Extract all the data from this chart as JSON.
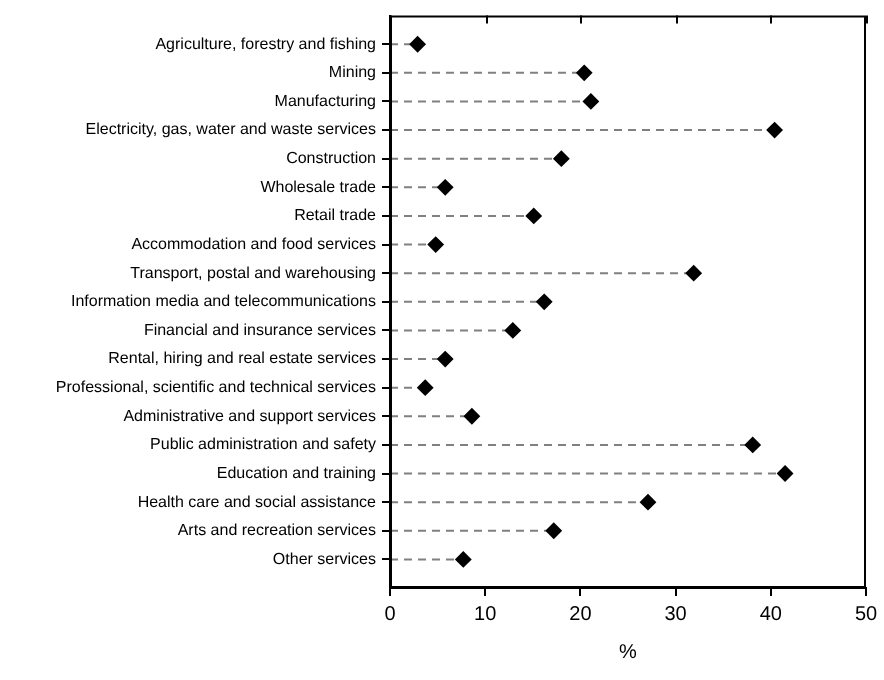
{
  "chart_data": {
    "type": "lollipop",
    "orientation": "horizontal",
    "xlabel": "%",
    "categories": [
      "Agriculture, forestry and fishing",
      "Mining",
      "Manufacturing",
      "Electricity, gas, water and waste services",
      "Construction",
      "Wholesale trade",
      "Retail trade",
      "Accommodation and food services",
      "Transport, postal and warehousing",
      "Information media and telecommunications",
      "Financial and insurance services",
      "Rental, hiring and real estate services",
      "Professional, scientific and technical services",
      "Administrative and support services",
      "Public administration and safety",
      "Education and training",
      "Health care and social assistance",
      "Arts and recreation services",
      "Other services"
    ],
    "values": [
      2.9,
      20.4,
      21.1,
      40.4,
      18.0,
      5.8,
      15.1,
      4.8,
      31.9,
      16.2,
      12.9,
      5.8,
      3.7,
      8.6,
      38.1,
      41.5,
      27.1,
      17.2,
      7.7
    ],
    "color": "#000000",
    "marker": "diamond",
    "line_style": "dashed",
    "xlim": [
      0,
      50
    ],
    "xticks": [
      0,
      10,
      20,
      30,
      40,
      50
    ],
    "grid": false,
    "legend": false
  }
}
